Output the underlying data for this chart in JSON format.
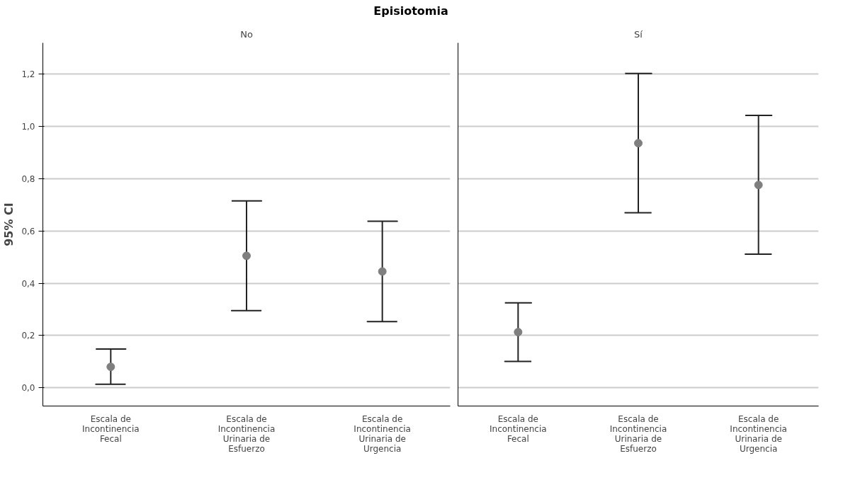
{
  "chart_data": [
    {
      "type": "scatter",
      "title": "Episiotomia",
      "subtitle": "No",
      "ylabel": "95% CI",
      "categories": [
        "Escala de\nIncontinencia\nFecal",
        "Escala de\nIncontinencia\nUrinaria de\nEsfuerzo",
        "Escala de\nIncontinencia\nUrinaria de\nUrgencia"
      ],
      "values": [
        0.08,
        0.505,
        0.445
      ],
      "errors": [
        [
          0.013,
          0.148
        ],
        [
          0.295,
          0.715
        ],
        [
          0.253,
          0.637
        ]
      ],
      "color": "#7f7f7f",
      "marker": "circle",
      "grid": "y",
      "ylim": [
        -0.07,
        1.32
      ],
      "yticks": [
        {
          "value": 0,
          "label": "0,0"
        },
        {
          "value": 0.2,
          "label": "0,2"
        },
        {
          "value": 0.4,
          "label": "0,4"
        },
        {
          "value": 0.6,
          "label": "0,6"
        },
        {
          "value": 0.8,
          "label": "0,8"
        },
        {
          "value": 1.0,
          "label": "1,0"
        },
        {
          "value": 1.2,
          "label": "1,2"
        }
      ]
    },
    {
      "type": "scatter",
      "subtitle": "Sí",
      "categories": [
        "Escala de\nIncontinencia\nFecal",
        "Escala de\nIncontinencia\nUrinaria de\nEsfuerzo",
        "Escala de\nIncontinencia\nUrinaria de\nUrgencia"
      ],
      "values": [
        0.213,
        0.936,
        0.776
      ],
      "errors": [
        [
          0.101,
          0.325
        ],
        [
          0.67,
          1.203
        ],
        [
          0.511,
          1.042
        ]
      ],
      "color": "#7f7f7f",
      "marker": "circle",
      "grid": "y",
      "tick_labels": "x",
      "ylim": [
        -0.07,
        1.32
      ],
      "yticks": [
        {
          "value": 0,
          "label": null
        },
        {
          "value": 0.2,
          "label": null
        },
        {
          "value": 0.4,
          "label": null
        },
        {
          "value": 0.6,
          "label": null
        },
        {
          "value": 0.8,
          "label": null
        },
        {
          "value": 1.0,
          "label": null
        },
        {
          "value": 1.2,
          "label": null
        }
      ]
    }
  ]
}
